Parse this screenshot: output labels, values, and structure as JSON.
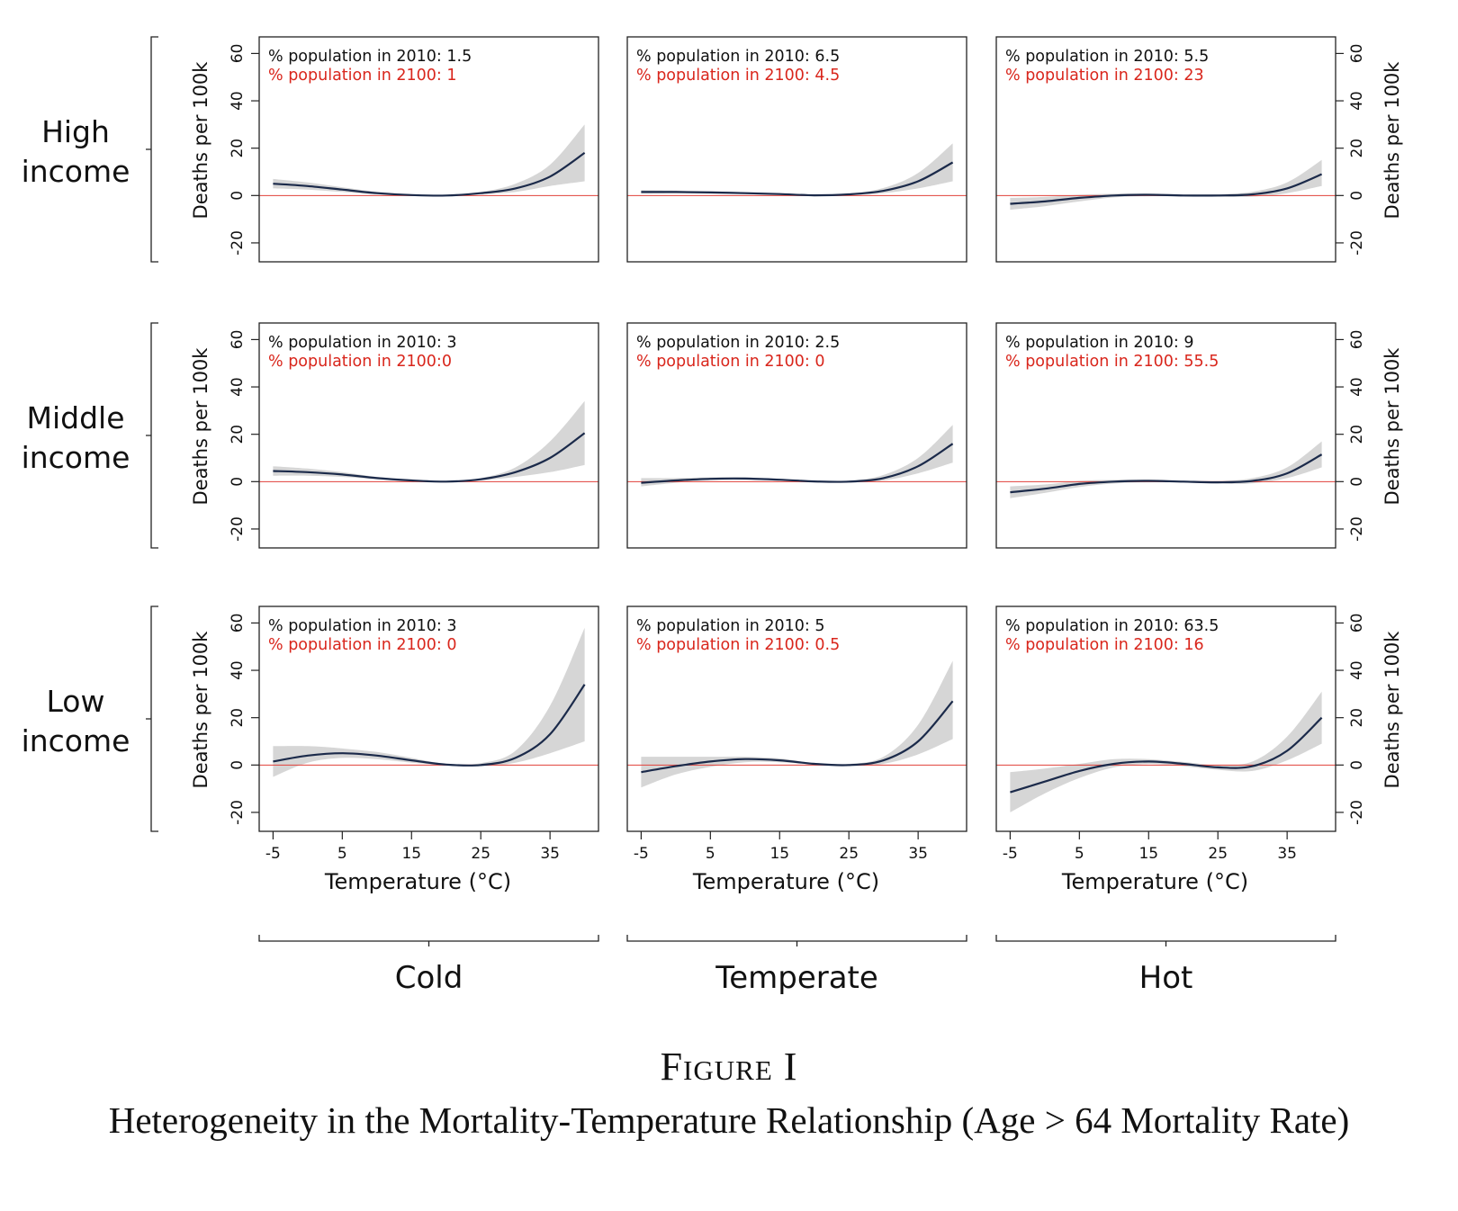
{
  "figure": {
    "label": "Figure I",
    "title": "Heterogeneity in the Mortality-Temperature Relationship (Age > 64 Mortality Rate)"
  },
  "row_labels": [
    [
      "High",
      "income"
    ],
    [
      "Middle",
      "income"
    ],
    [
      "Low",
      "income"
    ]
  ],
  "col_labels": [
    "Cold",
    "Temperate",
    "Hot"
  ],
  "colors": {
    "line": "#1b2a4a",
    "band": "#d6d6d6",
    "zero_line": "#e0413a",
    "text_2100": "#d9261c",
    "text_2010": "#111111"
  },
  "chart_data": {
    "type": "line",
    "layout": "3x3 small multiples with confidence bands",
    "xlabel": "Temperature (°C)",
    "ylabel": "Deaths per 100k",
    "xticks": [
      -5,
      5,
      15,
      25,
      35
    ],
    "yticks": [
      -20,
      0,
      20,
      40,
      60
    ],
    "xlim": [
      -7,
      42
    ],
    "ylim": [
      -28,
      67
    ],
    "zero_reference_line": true,
    "panels": [
      {
        "row": "High income",
        "col": "Cold",
        "pop2010": "% population in 2010: 1.5",
        "pop2100": "% population in 2100: 1",
        "x": [
          -5,
          0,
          5,
          10,
          15,
          20,
          25,
          30,
          35,
          40
        ],
        "y": [
          5,
          4,
          2.5,
          1,
          0.2,
          0,
          1,
          3,
          8,
          18
        ],
        "lower": [
          3,
          2.5,
          1.5,
          0.5,
          0,
          0,
          0.5,
          1.5,
          4,
          6
        ],
        "upper": [
          7,
          5.5,
          3.5,
          1.6,
          0.5,
          0,
          1.5,
          5,
          13,
          30
        ]
      },
      {
        "row": "High income",
        "col": "Temperate",
        "pop2010": "% population in 2010: 6.5",
        "pop2100": "% population in 2100: 4.5",
        "x": [
          -5,
          0,
          5,
          10,
          15,
          20,
          25,
          30,
          35,
          40
        ],
        "y": [
          1.5,
          1.5,
          1.3,
          1,
          0.6,
          0.1,
          0.5,
          2,
          6,
          14
        ],
        "lower": [
          0.8,
          0.9,
          0.8,
          0.6,
          0.3,
          0,
          0.2,
          1,
          3,
          6
        ],
        "upper": [
          2.3,
          2.1,
          1.8,
          1.4,
          0.9,
          0.2,
          0.8,
          3.2,
          9.5,
          22
        ]
      },
      {
        "row": "High income",
        "col": "Hot",
        "pop2010": "% population in 2010: 5.5",
        "pop2100": "% population in 2100: 23",
        "x": [
          -5,
          0,
          5,
          10,
          15,
          20,
          25,
          30,
          35,
          40
        ],
        "y": [
          -3.5,
          -2.5,
          -1,
          0,
          0.3,
          0,
          0,
          0.5,
          3,
          9
        ],
        "lower": [
          -6,
          -4.5,
          -2.5,
          -0.8,
          -0.3,
          -0.4,
          -0.5,
          -0.5,
          1,
          4
        ],
        "upper": [
          -1,
          -0.6,
          0.3,
          0.8,
          0.8,
          0.5,
          0.6,
          1.6,
          5.5,
          15
        ]
      },
      {
        "row": "Middle income",
        "col": "Cold",
        "pop2010": "% population in 2010: 3",
        "pop2100": "% population in 2100:0",
        "x": [
          -5,
          0,
          5,
          10,
          15,
          20,
          25,
          30,
          35,
          40
        ],
        "y": [
          4.5,
          4,
          3,
          1.5,
          0.5,
          0,
          1,
          4,
          10,
          20.5
        ],
        "lower": [
          2.5,
          2.5,
          2,
          1,
          0.2,
          0,
          0.5,
          2,
          4,
          7
        ],
        "upper": [
          6.5,
          5.5,
          4,
          2,
          0.8,
          0,
          1.5,
          6,
          17,
          34
        ]
      },
      {
        "row": "Middle income",
        "col": "Temperate",
        "pop2010": "% population in 2010: 2.5",
        "pop2100": "% population in 2100: 0",
        "x": [
          -5,
          0,
          5,
          10,
          15,
          20,
          25,
          30,
          35,
          40
        ],
        "y": [
          -0.5,
          0.5,
          1.2,
          1.3,
          0.8,
          0.1,
          0,
          1.5,
          6.5,
          16
        ],
        "lower": [
          -2,
          -0.5,
          0.6,
          0.8,
          0.5,
          0,
          -0.4,
          0.5,
          3.5,
          8
        ],
        "upper": [
          1.5,
          1.5,
          1.8,
          1.8,
          1.1,
          0.3,
          0.4,
          2.8,
          10,
          24
        ]
      },
      {
        "row": "Middle income",
        "col": "Hot",
        "pop2010": "% population in 2010: 9",
        "pop2100": "% population in 2100: 55.5",
        "x": [
          -5,
          0,
          5,
          10,
          15,
          20,
          25,
          30,
          35,
          40
        ],
        "y": [
          -4.5,
          -3,
          -1,
          0,
          0.3,
          0,
          -0.3,
          0.3,
          3.5,
          11.5
        ],
        "lower": [
          -7,
          -4.8,
          -2.3,
          -0.8,
          -0.3,
          -0.4,
          -0.8,
          -0.7,
          1.5,
          6
        ],
        "upper": [
          -2,
          -1.2,
          0.3,
          0.8,
          0.9,
          0.5,
          0.3,
          1.5,
          6,
          17
        ]
      },
      {
        "row": "Low income",
        "col": "Cold",
        "pop2010": "% population in 2010: 3",
        "pop2100": "% population in 2100: 0",
        "x": [
          -5,
          0,
          5,
          10,
          15,
          20,
          25,
          30,
          35,
          40
        ],
        "y": [
          1.5,
          4,
          5,
          4,
          2,
          0.2,
          0,
          3,
          13,
          34
        ],
        "lower": [
          -5,
          1,
          3,
          2.5,
          1,
          0,
          -0.5,
          1,
          5,
          10
        ],
        "upper": [
          8,
          8,
          7,
          5.5,
          3,
          0.5,
          0.8,
          6,
          25,
          58
        ]
      },
      {
        "row": "Low income",
        "col": "Temperate",
        "pop2010": "% population in 2010: 5",
        "pop2100": "% population in 2100: 0.5",
        "x": [
          -5,
          0,
          5,
          10,
          15,
          20,
          25,
          30,
          35,
          40
        ],
        "y": [
          -3,
          -0.5,
          1.5,
          2.5,
          2,
          0.5,
          0,
          2,
          10,
          27
        ],
        "lower": [
          -9.5,
          -4,
          -0.8,
          1.2,
          1.2,
          0.2,
          -0.5,
          0.5,
          4.5,
          11
        ],
        "upper": [
          3.5,
          3.5,
          3.5,
          3.5,
          2.8,
          0.9,
          0.5,
          3.5,
          17,
          44
        ]
      },
      {
        "row": "Low income",
        "col": "Hot",
        "pop2010": "% population in 2010: 63.5",
        "pop2100": "% population in 2100: 16",
        "x": [
          -5,
          0,
          5,
          10,
          15,
          20,
          25,
          30,
          35,
          40
        ],
        "y": [
          -11.5,
          -7,
          -2.5,
          0.5,
          1.5,
          0.5,
          -1,
          -0.5,
          6,
          20
        ],
        "lower": [
          -20,
          -12,
          -5.5,
          -1,
          0.5,
          -0.5,
          -2,
          -2.5,
          2,
          9
        ],
        "upper": [
          -3,
          -1.5,
          0.5,
          2.5,
          2.5,
          1.3,
          0,
          1.5,
          12,
          31
        ]
      }
    ]
  }
}
